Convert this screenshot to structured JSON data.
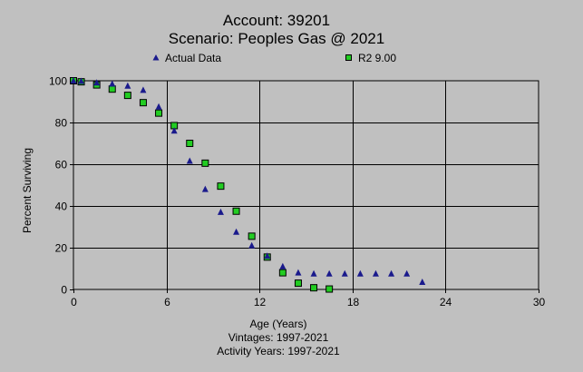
{
  "chart_data": {
    "type": "scatter",
    "title": "Account: 39201",
    "subtitle": "Scenario: Peoples Gas @ 2021",
    "xlabel": "Age (Years)",
    "ylabel": "Percent Surviving",
    "xlim": [
      0,
      30
    ],
    "ylim": [
      0,
      100
    ],
    "x_ticks": [
      0,
      6,
      12,
      18,
      24,
      30
    ],
    "y_ticks": [
      0,
      20,
      40,
      60,
      80,
      100
    ],
    "grid": true,
    "legend_position": "top",
    "series": [
      {
        "name": "Actual Data",
        "marker": "triangle",
        "color": "#1a1a8c",
        "x": [
          0.0,
          0.5,
          1.5,
          2.5,
          3.5,
          4.5,
          5.5,
          6.5,
          7.5,
          8.5,
          9.5,
          10.5,
          11.5,
          12.5,
          13.5,
          14.5,
          15.5,
          16.5,
          17.5,
          18.5,
          19.5,
          20.5,
          21.5,
          22.5
        ],
        "y": [
          100.0,
          99.8,
          99.0,
          98.5,
          97.5,
          95.5,
          87.5,
          76.0,
          61.5,
          48.0,
          37.0,
          27.5,
          21.0,
          16.0,
          11.0,
          8.0,
          7.5,
          7.5,
          7.5,
          7.5,
          7.5,
          7.5,
          7.5,
          3.5
        ]
      },
      {
        "name": "R2 9.00",
        "marker": "square",
        "color": "#22cc22",
        "x": [
          0.0,
          0.5,
          1.5,
          2.5,
          3.5,
          4.5,
          5.5,
          6.5,
          7.5,
          8.5,
          9.5,
          10.5,
          11.5,
          12.5,
          13.5,
          14.5,
          15.5,
          16.5
        ],
        "y": [
          100.0,
          99.5,
          98.0,
          96.0,
          93.0,
          89.5,
          84.5,
          78.5,
          70.0,
          60.5,
          49.5,
          37.5,
          25.5,
          15.5,
          8.0,
          3.0,
          0.8,
          0.2
        ]
      }
    ],
    "footer_lines": [
      "Vintages: 1997-2021",
      "Activity Years: 1997-2021"
    ]
  }
}
